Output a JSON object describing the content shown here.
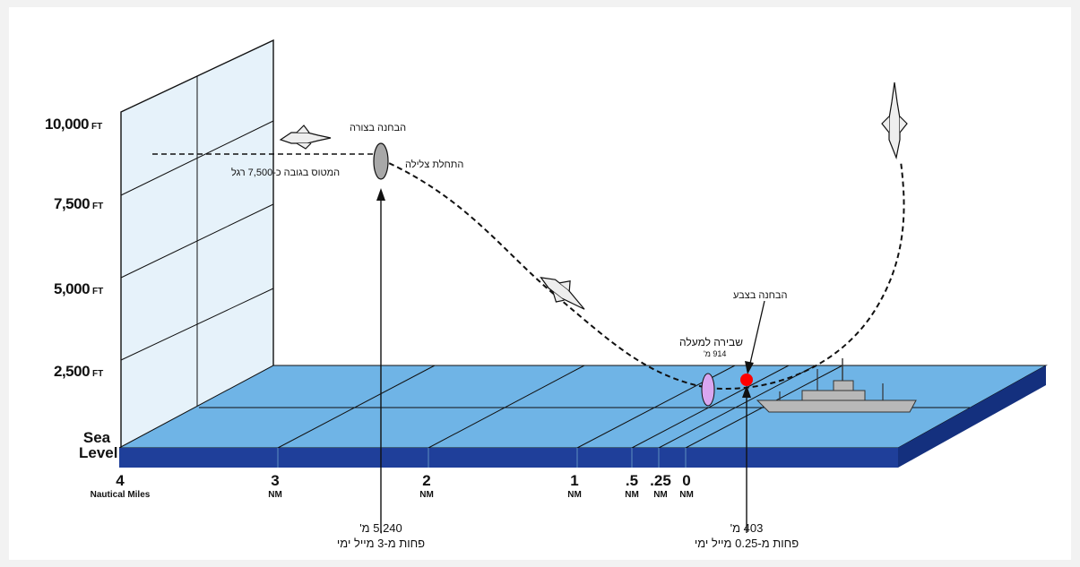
{
  "altitudes": [
    {
      "value": "10,000",
      "unit": "FT"
    },
    {
      "value": "7,500",
      "unit": "FT"
    },
    {
      "value": "5,000",
      "unit": "FT"
    },
    {
      "value": "2,500",
      "unit": "FT"
    }
  ],
  "sea_level": {
    "line1": "Sea",
    "line2": "Level"
  },
  "distances": [
    {
      "value": "4",
      "unit": "Nautical Miles"
    },
    {
      "value": "3",
      "unit": "NM"
    },
    {
      "value": "2",
      "unit": "NM"
    },
    {
      "value": "1",
      "unit": "NM"
    },
    {
      "value": ".5",
      "unit": "NM"
    },
    {
      "value": ".25",
      "unit": "NM"
    },
    {
      "value": "0",
      "unit": "NM"
    }
  ],
  "labels": {
    "visual_id": "הבחנה בצורה",
    "roll_in": "התחלת צלילה",
    "approach_alt": "המטוס בגובה כ-7,500 רגל",
    "color_id": "הבחנה בצבע",
    "pull_up": "שבירה למעלה",
    "pull_up_alt": "914 מ'"
  },
  "measurements": {
    "left": {
      "line1": "5,240 מ'",
      "line2": "פחות מ-3 מייל ימי"
    },
    "right": {
      "line1": "403 מ'",
      "line2": "פחות מ-0.25 מייל ימי"
    }
  },
  "colors": {
    "grid_panel": "#e6f2fa",
    "sea_top": "#6fb4e6",
    "sea_front": "#1f3f9a",
    "path": "#222222",
    "target_marker": "#ff0000",
    "pull_up_ellipse": "#d9a6f0",
    "visual_ellipse": "#a8a8a8",
    "ship": "#b8b8b8"
  }
}
